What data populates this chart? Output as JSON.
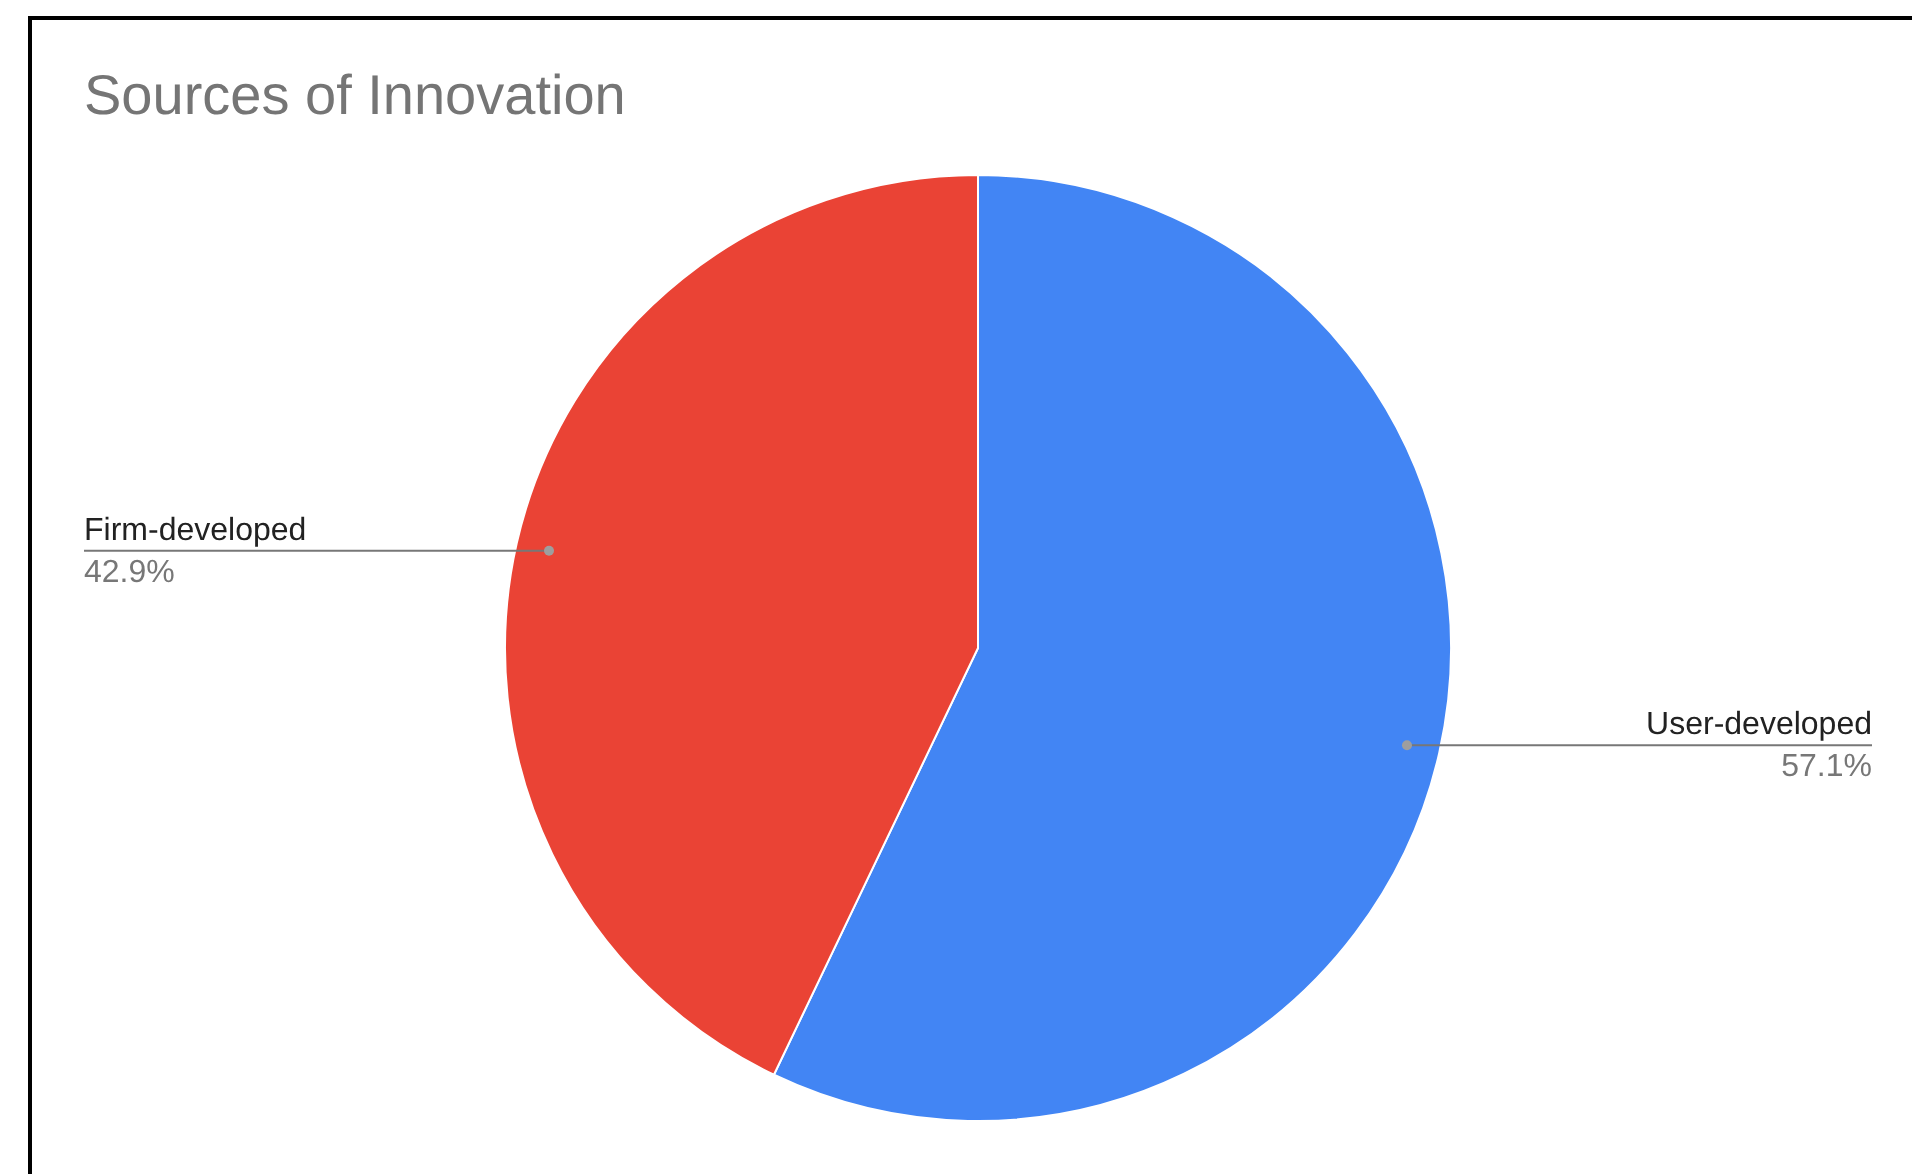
{
  "chart_data": {
    "type": "pie",
    "title": "Sources of Innovation",
    "categories": [
      "User-developed",
      "Firm-developed"
    ],
    "values": [
      57.1,
      42.9
    ],
    "colors": [
      "#4285f4",
      "#ea4335"
    ],
    "value_labels": [
      "57.1%",
      "42.9%"
    ],
    "legend": false
  }
}
